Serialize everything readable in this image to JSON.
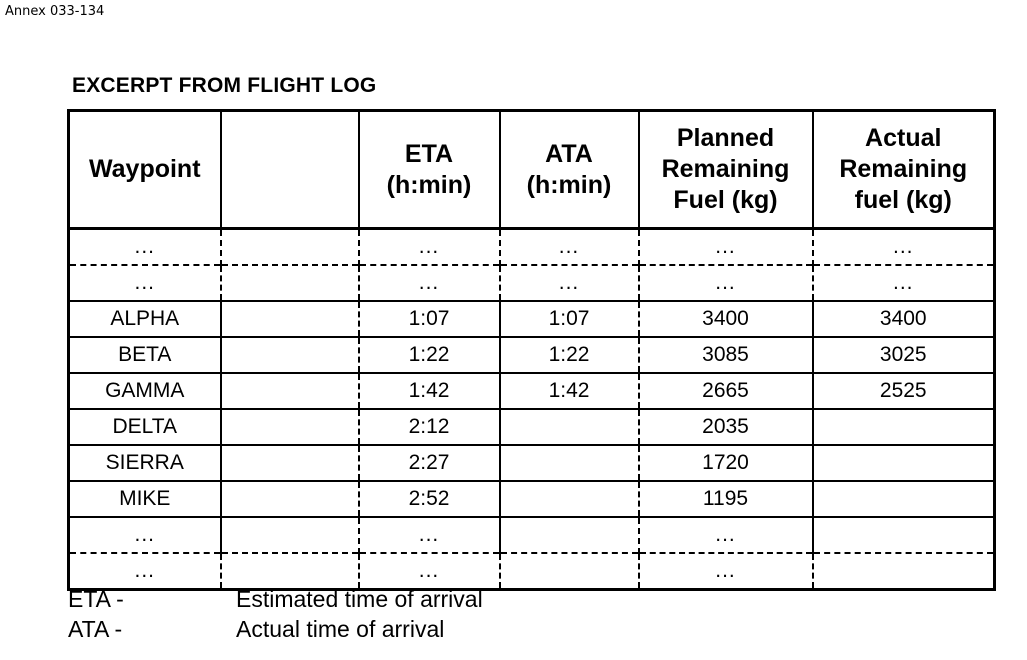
{
  "annex": "Annex 033-134",
  "title": "EXCERPT FROM FLIGHT LOG",
  "headers": {
    "waypoint": "Waypoint",
    "blank": "",
    "eta": "ETA\n(h:min)",
    "ata": "ATA\n(h:min)",
    "planned": "Planned\nRemaining\nFuel (kg)",
    "actual": "Actual\nRemaining\nfuel (kg)"
  },
  "rows": [
    {
      "waypoint": "...",
      "eta": "...",
      "ata": "...",
      "planned": "...",
      "actual": "...",
      "ellipsis": true
    },
    {
      "waypoint": "...",
      "eta": "...",
      "ata": "...",
      "planned": "...",
      "actual": "...",
      "ellipsis": true
    },
    {
      "waypoint": "ALPHA",
      "eta": "1:07",
      "ata": "1:07",
      "planned": "3400",
      "actual": "3400"
    },
    {
      "waypoint": "BETA",
      "eta": "1:22",
      "ata": "1:22",
      "planned": "3085",
      "actual": "3025"
    },
    {
      "waypoint": "GAMMA",
      "eta": "1:42",
      "ata": "1:42",
      "planned": "2665",
      "actual": "2525"
    },
    {
      "waypoint": "DELTA",
      "eta": "2:12",
      "ata": "",
      "planned": "2035",
      "actual": ""
    },
    {
      "waypoint": "SIERRA",
      "eta": "2:27",
      "ata": "",
      "planned": "1720",
      "actual": ""
    },
    {
      "waypoint": "MIKE",
      "eta": "2:52",
      "ata": "",
      "planned": "1195",
      "actual": ""
    },
    {
      "waypoint": "...",
      "eta": "...",
      "ata": "",
      "planned": "...",
      "actual": "",
      "ellipsis": true
    },
    {
      "waypoint": "...",
      "eta": "...",
      "ata": "",
      "planned": "...",
      "actual": "",
      "ellipsis": true
    }
  ],
  "legend": [
    {
      "abbr": "ETA -",
      "meaning": "Estimated time of arrival"
    },
    {
      "abbr": "ATA -",
      "meaning": "Actual time of arrival"
    }
  ]
}
